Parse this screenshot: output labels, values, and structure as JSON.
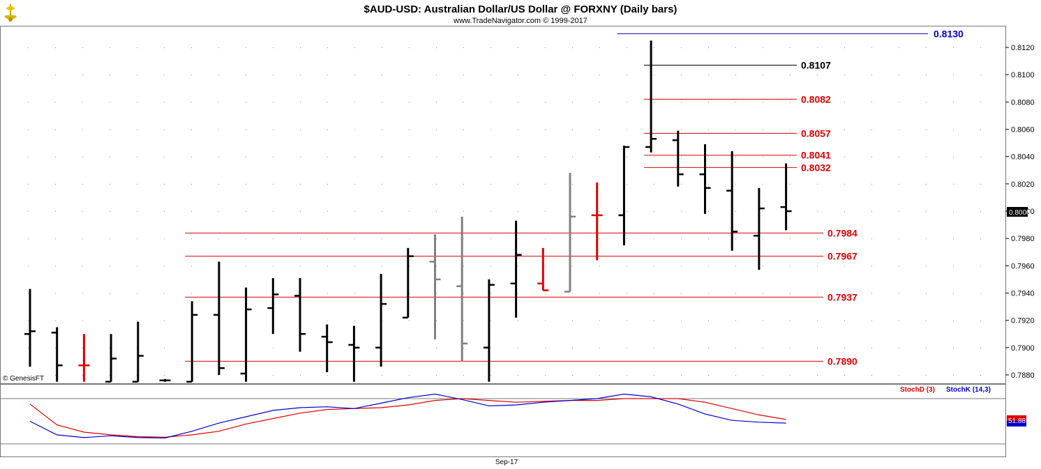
{
  "header": {
    "title": "$AUD-USD:  Australian Dollar/US Dollar @ FORXNY  (Daily bars)",
    "subtitle": "www.TradeNavigator.com © 1999-2017",
    "logo_icon": "navigator-ship-logo"
  },
  "footer": {
    "copyright": "© GenesisFT",
    "date_label": "Sep-17"
  },
  "colors": {
    "bar_black": "#000000",
    "bar_red": "#dd0000",
    "bar_gray": "#808080",
    "level_red": "#dd0000",
    "level_black": "#000000",
    "level_blue": "#0000cc",
    "stochd": "#dd0000",
    "stochk": "#0000cc"
  },
  "chart_data": [
    {
      "type": "ohlc",
      "title": "$AUD-USD:  Australian Dollar/US Dollar @ FORXNY  (Daily bars)",
      "yticks": [
        "0.7880",
        "0.7900",
        "0.7920",
        "0.7940",
        "0.7960",
        "0.7980",
        "0.8000",
        "0.8020",
        "0.8040",
        "0.8060",
        "0.8080",
        "0.8100",
        "0.8120"
      ],
      "ylim": [
        0.7875,
        0.8135
      ],
      "last_price": "0.8000",
      "bars": [
        {
          "h": 0.7943,
          "l": 0.7886,
          "o": 0.791,
          "c": 0.7912,
          "color": "black"
        },
        {
          "h": 0.7915,
          "l": 0.7875,
          "o": 0.7911,
          "c": 0.7887,
          "color": "black"
        },
        {
          "h": 0.791,
          "l": 0.7875,
          "o": 0.7887,
          "c": 0.7887,
          "color": "red"
        },
        {
          "h": 0.791,
          "l": 0.7875,
          "o": 0.7875,
          "c": 0.7892,
          "color": "black"
        },
        {
          "h": 0.7919,
          "l": 0.7875,
          "o": 0.7875,
          "c": 0.7894,
          "color": "black"
        },
        {
          "h": 0.7877,
          "l": 0.7875,
          "o": 0.7876,
          "c": 0.7876,
          "color": "black"
        },
        {
          "h": 0.7934,
          "l": 0.7875,
          "o": 0.7875,
          "c": 0.7924,
          "color": "black"
        },
        {
          "h": 0.7963,
          "l": 0.788,
          "o": 0.7924,
          "c": 0.7885,
          "color": "black"
        },
        {
          "h": 0.7944,
          "l": 0.7875,
          "o": 0.7881,
          "c": 0.7928,
          "color": "black"
        },
        {
          "h": 0.7951,
          "l": 0.791,
          "o": 0.7929,
          "c": 0.7939,
          "color": "black"
        },
        {
          "h": 0.7951,
          "l": 0.7897,
          "o": 0.7938,
          "c": 0.791,
          "color": "black"
        },
        {
          "h": 0.7917,
          "l": 0.7882,
          "o": 0.7908,
          "c": 0.7904,
          "color": "black"
        },
        {
          "h": 0.7916,
          "l": 0.7875,
          "o": 0.7902,
          "c": 0.79,
          "color": "black"
        },
        {
          "h": 0.7954,
          "l": 0.7886,
          "o": 0.79,
          "c": 0.7932,
          "color": "black"
        },
        {
          "h": 0.7973,
          "l": 0.7922,
          "o": 0.7922,
          "c": 0.7967,
          "color": "black"
        },
        {
          "h": 0.7983,
          "l": 0.7906,
          "o": 0.7963,
          "c": 0.795,
          "color": "gray"
        },
        {
          "h": 0.7996,
          "l": 0.789,
          "o": 0.7945,
          "c": 0.7903,
          "color": "gray"
        },
        {
          "h": 0.795,
          "l": 0.7875,
          "o": 0.79,
          "c": 0.7946,
          "color": "black"
        },
        {
          "h": 0.7993,
          "l": 0.7922,
          "o": 0.7947,
          "c": 0.7968,
          "color": "black"
        },
        {
          "h": 0.7973,
          "l": 0.7942,
          "o": 0.7947,
          "c": 0.7942,
          "color": "red"
        },
        {
          "h": 0.8028,
          "l": 0.7941,
          "o": 0.7941,
          "c": 0.7996,
          "color": "gray"
        },
        {
          "h": 0.8021,
          "l": 0.7964,
          "o": 0.7997,
          "c": 0.7997,
          "color": "red"
        },
        {
          "h": 0.8048,
          "l": 0.7975,
          "o": 0.7997,
          "c": 0.8047,
          "color": "black"
        },
        {
          "h": 0.8125,
          "l": 0.8043,
          "o": 0.8047,
          "c": 0.8053,
          "color": "black"
        },
        {
          "h": 0.8059,
          "l": 0.8018,
          "o": 0.8052,
          "c": 0.8027,
          "color": "black"
        },
        {
          "h": 0.8049,
          "l": 0.7998,
          "o": 0.8027,
          "c": 0.8017,
          "color": "black"
        },
        {
          "h": 0.8044,
          "l": 0.7971,
          "o": 0.8015,
          "c": 0.7985,
          "color": "black"
        },
        {
          "h": 0.8017,
          "l": 0.7957,
          "o": 0.7982,
          "c": 0.8002,
          "color": "black"
        },
        {
          "h": 0.8035,
          "l": 0.7986,
          "o": 0.8003,
          "c": 0.8,
          "color": "black"
        }
      ],
      "levels": [
        {
          "value": 0.813,
          "label": "0.8130",
          "color": "blue",
          "from_bar": 22
        },
        {
          "value": 0.8107,
          "label": "0.8107",
          "color": "black",
          "from_bar": 23
        },
        {
          "value": 0.8082,
          "label": "0.8082",
          "color": "red",
          "from_bar": 23
        },
        {
          "value": 0.8057,
          "label": "0.8057",
          "color": "red",
          "from_bar": 23
        },
        {
          "value": 0.8041,
          "label": "0.8041",
          "color": "red",
          "from_bar": 23
        },
        {
          "value": 0.8032,
          "label": "0.8032",
          "color": "red",
          "from_bar": 23
        },
        {
          "value": 0.7984,
          "label": "0.7984",
          "color": "red",
          "from_bar": 6
        },
        {
          "value": 0.7967,
          "label": "0.7967",
          "color": "red",
          "from_bar": 6
        },
        {
          "value": 0.7937,
          "label": "0.7937",
          "color": "red",
          "from_bar": 6
        },
        {
          "value": 0.789,
          "label": "0.7890",
          "color": "red",
          "from_bar": 6
        }
      ]
    },
    {
      "type": "line",
      "ylim": [
        0,
        100
      ],
      "last_value": "51.88",
      "series": [
        {
          "name": "StochD (3)",
          "color": "red",
          "values": [
            88,
            42,
            26,
            20,
            16,
            15,
            20,
            28,
            44,
            56,
            68,
            76,
            78,
            80,
            86,
            96,
            100,
            96,
            92,
            94,
            96,
            96,
            100,
            100,
            100,
            92,
            78,
            64,
            54
          ]
        },
        {
          "name": "StochK (14,3)",
          "color": "blue",
          "values": [
            50,
            20,
            14,
            18,
            14,
            13,
            28,
            46,
            60,
            74,
            80,
            82,
            78,
            90,
            102,
            110,
            98,
            84,
            86,
            92,
            96,
            100,
            110,
            104,
            88,
            66,
            52,
            48,
            46
          ]
        }
      ]
    }
  ]
}
